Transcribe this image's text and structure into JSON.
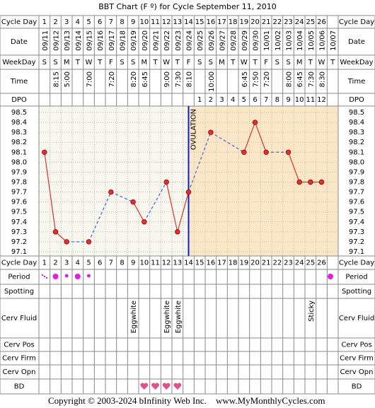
{
  "chart_data": {
    "type": "line",
    "title": "BBT Chart (F º) for Cycle September 11, 2010",
    "row_labels": {
      "cycle_day": "Cycle Day",
      "date": "Date",
      "weekday": "WeekDay",
      "time": "Time",
      "dpo": "DPO",
      "period": "Period",
      "spotting": "Spotting",
      "cerv_fluid": "Cerv Fluid",
      "cerv_pos": "Cerv Pos",
      "cerv_firm": "Cerv Firm",
      "cerv_opn": "Cerv Opn",
      "bd": "BD"
    },
    "cycle_days": [
      1,
      2,
      3,
      4,
      5,
      6,
      7,
      8,
      9,
      10,
      11,
      12,
      13,
      14,
      15,
      16,
      17,
      18,
      19,
      20,
      21,
      22,
      23,
      24,
      25,
      26
    ],
    "x": [
      "09/11",
      "09/12",
      "09/13",
      "09/14",
      "09/15",
      "09/16",
      "09/17",
      "09/18",
      "09/19",
      "09/20",
      "09/21",
      "09/22",
      "09/23",
      "09/24",
      "09/25",
      "09/26",
      "09/27",
      "09/28",
      "09/29",
      "09/30",
      "10/01",
      "10/02",
      "10/03",
      "10/04",
      "10/05",
      "10/06",
      "10/07"
    ],
    "weekdays": [
      "S",
      "S",
      "M",
      "T",
      "W",
      "T",
      "F",
      "S",
      "S",
      "M",
      "T",
      "W",
      "T",
      "F",
      "S",
      "S",
      "M",
      "T",
      "W",
      "T",
      "F",
      "S",
      "S",
      "M",
      "T",
      "W",
      "T"
    ],
    "times": [
      null,
      "8:15",
      "5:00",
      null,
      "7:00",
      null,
      "7:20",
      null,
      "8:20",
      "6:45",
      null,
      "9:00",
      "7:30",
      "8:10",
      null,
      "10:00",
      null,
      null,
      "6:45",
      "7:50",
      "7:20",
      null,
      "8:00",
      "6:45",
      "7:30",
      "8:30",
      null
    ],
    "dpo": [
      null,
      null,
      null,
      null,
      null,
      null,
      null,
      null,
      null,
      null,
      null,
      null,
      null,
      null,
      1,
      2,
      3,
      4,
      5,
      6,
      7,
      8,
      9,
      10,
      11,
      12,
      null
    ],
    "values": [
      98.1,
      97.3,
      97.2,
      null,
      97.2,
      null,
      97.7,
      null,
      97.6,
      97.4,
      null,
      97.8,
      97.3,
      97.7,
      null,
      98.3,
      null,
      null,
      98.1,
      98.4,
      98.1,
      null,
      98.1,
      97.8,
      97.8,
      97.8,
      null
    ],
    "color": "#e03030",
    "gap_color": "#4a5ee0",
    "ylim": [
      97.05,
      98.55
    ],
    "yticks": [
      98.5,
      98.4,
      98.3,
      98.2,
      98.1,
      {
        "value": 98,
        "label": "98.0"
      },
      97.9,
      97.8,
      97.7,
      97.6,
      97.5,
      97.4,
      97.3,
      97.2,
      97.1
    ],
    "grid": true,
    "ovulation": {
      "label": "OVULATION",
      "day": 14
    },
    "cervical_fluid": [
      null,
      null,
      null,
      null,
      null,
      null,
      null,
      null,
      "Eggwhite",
      null,
      null,
      "Eggwhite",
      "Eggwhite",
      null,
      null,
      null,
      null,
      null,
      null,
      null,
      null,
      null,
      null,
      null,
      "Sticky",
      null,
      null
    ],
    "copyright": "Copyright © 2003-2024 bInfinity Web Inc.",
    "website": "www.MyMonthlyCycles.com"
  }
}
